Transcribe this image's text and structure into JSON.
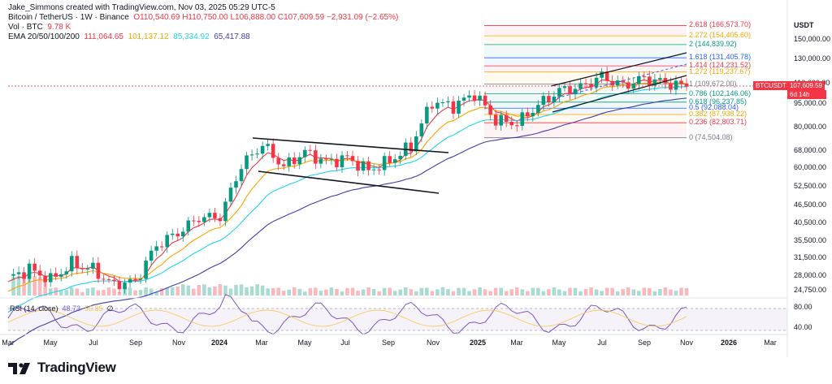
{
  "header": {
    "author_line": "Jake_Simmons created with TradingView.com, Nov 03, 2025 05:29 UTC-5",
    "symbol": "Bitcoin / TetherUS · 1W · Binance",
    "ohlc": "O110,540.69  H110,750.00  L106,888.00  C107,609.59  −2,931.09 (−2.65%)",
    "vol_label": "Vol · BTC",
    "vol_value": "9.78 K",
    "ema_label": "EMA 20/50/100/200",
    "ema_values": [
      "111,064.65",
      "101,137.12",
      "85,334.92",
      "65,417.88"
    ]
  },
  "colors": {
    "up": "#089981",
    "down": "#f23645",
    "ema20": "#f23645",
    "ema50": "#f7a600",
    "ema100": "#22d3ee",
    "ema200": "#3f3fa8"
  },
  "price_axis": {
    "currency": "USDT",
    "ticks": [
      "150,000.00",
      "130,000.00",
      "110,000.00",
      "95,000.00",
      "80,000.00",
      "68,000.00",
      "60,000.00",
      "52,500.00",
      "46,500.00",
      "40,500.00",
      "35,500.00",
      "31,500.00",
      "28,000.00",
      "24,750.00"
    ],
    "rsi_ticks": [
      "80.00",
      "40.00"
    ]
  },
  "badge": {
    "symbol": "BTCUSDT",
    "price": "107,609.59",
    "countdown": "6d 14h"
  },
  "fib_labels": [
    {
      "text": "2.618 (166,573.70)",
      "color": "#f23645"
    },
    {
      "text": "2.272 (154,405.60)",
      "color": "#f7a600"
    },
    {
      "text": "2 (144,839.92)",
      "color": "#089981"
    },
    {
      "text": "1.618 (131,405.78)",
      "color": "#2962ff"
    },
    {
      "text": "1.414 (124,231.52)",
      "color": "#f23645"
    },
    {
      "text": "1.272 (119,237.67)",
      "color": "#f7a600"
    },
    {
      "text": "1 (109,672.00)",
      "color": "#787b86"
    },
    {
      "text": "0.786 (102,146.06)",
      "color": "#089981"
    },
    {
      "text": "0.618 (96,237.85)",
      "color": "#089981"
    },
    {
      "text": "0.5 (92,088.04)",
      "color": "#2962ff"
    },
    {
      "text": "0.382 (87,938.22)",
      "color": "#f7a600"
    },
    {
      "text": "0.236 (82,803.71)",
      "color": "#f23645"
    },
    {
      "text": "0 (74,504.08)",
      "color": "#787b86"
    }
  ],
  "rsi": {
    "label": "RSI (14, close)",
    "value": "48.73",
    "value2": "56.85",
    "symbol": "∅"
  },
  "footer": {
    "brand": "TradingView"
  },
  "chart_data": {
    "type": "candlestick",
    "title": "Bitcoin / TetherUS · 1W · Binance",
    "y_scale": "log",
    "ylim": [
      24000,
      175000
    ],
    "x_tick_labels": [
      "Mar",
      "May",
      "Jul",
      "Sep",
      "Nov",
      "2024",
      "Mar",
      "May",
      "Jul",
      "Sep",
      "Nov",
      "2025",
      "Mar",
      "May",
      "Jul",
      "Sep",
      "Nov",
      "2026",
      "Mar"
    ],
    "candles_sampled": [
      {
        "date": "2023-03",
        "close": 27500
      },
      {
        "date": "2023-04",
        "close": 29300
      },
      {
        "date": "2023-05",
        "close": 27200
      },
      {
        "date": "2023-06",
        "close": 30400
      },
      {
        "date": "2023-07",
        "close": 29200
      },
      {
        "date": "2023-08",
        "close": 26000
      },
      {
        "date": "2023-09",
        "close": 26900
      },
      {
        "date": "2023-10",
        "close": 34500
      },
      {
        "date": "2023-11",
        "close": 37700
      },
      {
        "date": "2023-12",
        "close": 42300
      },
      {
        "date": "2024-01",
        "close": 42600
      },
      {
        "date": "2024-02",
        "close": 61100
      },
      {
        "date": "2024-03",
        "close": 71200
      },
      {
        "date": "2024-04",
        "close": 60600
      },
      {
        "date": "2024-05",
        "close": 67500
      },
      {
        "date": "2024-06",
        "close": 62700
      },
      {
        "date": "2024-07",
        "close": 64600
      },
      {
        "date": "2024-08",
        "close": 59000
      },
      {
        "date": "2024-09",
        "close": 63300
      },
      {
        "date": "2024-10",
        "close": 70200
      },
      {
        "date": "2024-11",
        "close": 96400
      },
      {
        "date": "2024-12",
        "close": 93400
      },
      {
        "date": "2025-01",
        "close": 102400
      },
      {
        "date": "2025-02",
        "close": 84300
      },
      {
        "date": "2025-03",
        "close": 82500
      },
      {
        "date": "2025-04",
        "close": 94200
      },
      {
        "date": "2025-05",
        "close": 104600
      },
      {
        "date": "2025-06",
        "close": 107100
      },
      {
        "date": "2025-07",
        "close": 115700
      },
      {
        "date": "2025-08",
        "close": 108200
      },
      {
        "date": "2025-09",
        "close": 114000
      },
      {
        "date": "2025-10",
        "close": 110500
      },
      {
        "date": "2025-11",
        "close": 107609.59
      }
    ],
    "ema_latest": {
      "EMA20": 111064.65,
      "EMA50": 101137.12,
      "EMA100": 85334.92,
      "EMA200": 65417.88
    },
    "fib_levels": [
      {
        "ratio": 2.618,
        "price": 166573.7
      },
      {
        "ratio": 2.272,
        "price": 154405.6
      },
      {
        "ratio": 2,
        "price": 144839.92
      },
      {
        "ratio": 1.618,
        "price": 131405.78
      },
      {
        "ratio": 1.414,
        "price": 124231.52
      },
      {
        "ratio": 1.272,
        "price": 119237.67
      },
      {
        "ratio": 1,
        "price": 109672.0
      },
      {
        "ratio": 0.786,
        "price": 102146.06
      },
      {
        "ratio": 0.618,
        "price": 96237.85
      },
      {
        "ratio": 0.5,
        "price": 92088.04
      },
      {
        "ratio": 0.382,
        "price": 87938.22
      },
      {
        "ratio": 0.236,
        "price": 82803.71
      },
      {
        "ratio": 0,
        "price": 74504.08
      }
    ],
    "rsi_levels": [
      80,
      40
    ]
  }
}
